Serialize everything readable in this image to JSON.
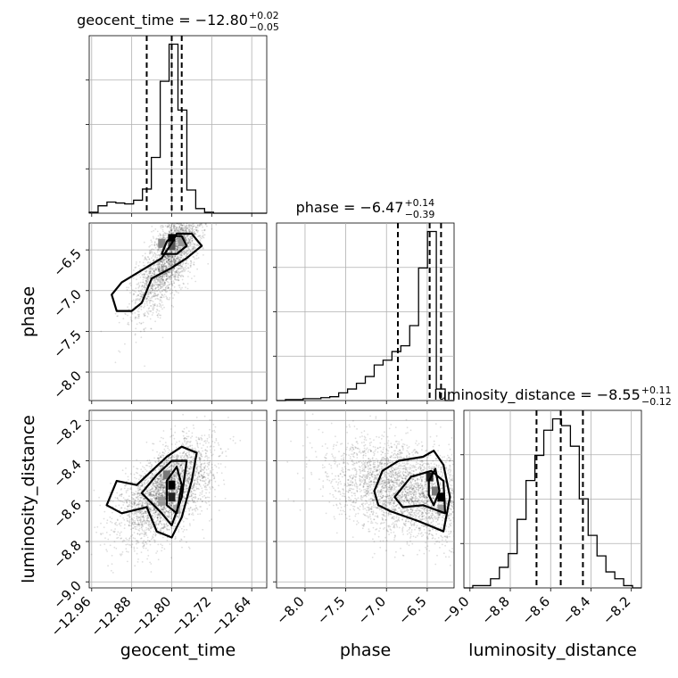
{
  "chart_data": {
    "type": "corner",
    "parameters": [
      "geocent_time",
      "phase",
      "luminosity_distance"
    ],
    "axis_labels": {
      "x": [
        "geocent_time",
        "phase",
        "luminosity_distance"
      ],
      "y": [
        "phase",
        "luminosity_distance"
      ]
    },
    "titles": [
      {
        "parameter": "geocent_time",
        "text": "geocent_time = −12.80",
        "plus": "+0.02",
        "minus": "−0.05"
      },
      {
        "parameter": "phase",
        "text": "phase = −6.47",
        "plus": "+0.14",
        "minus": "−0.39"
      },
      {
        "parameter": "luminosity_distance",
        "text": "luminosity_distance = −8.55",
        "plus": "+0.11",
        "minus": "−0.12"
      }
    ],
    "ranges": {
      "geocent_time": [
        -12.965,
        -12.61
      ],
      "phase": [
        -8.35,
        -6.17
      ],
      "luminosity_distance": [
        -9.03,
        -8.15
      ]
    },
    "ticks": {
      "geocent_time": [
        -12.96,
        -12.88,
        -12.8,
        -12.72,
        -12.64
      ],
      "phase": [
        -8.0,
        -7.5,
        -7.0,
        -6.5
      ],
      "luminosity_distance": [
        -9.0,
        -8.8,
        -8.6,
        -8.4,
        -8.2
      ]
    },
    "tick_labels": {
      "geocent_time": [
        "−12.96",
        "−12.88",
        "−12.80",
        "−12.72",
        "−12.64"
      ],
      "phase": [
        "−8.0",
        "−7.5",
        "−7.0",
        "−6.5"
      ],
      "luminosity_distance": [
        "−9.0",
        "−8.8",
        "−8.6",
        "−8.4",
        "−8.2"
      ]
    },
    "quantiles": {
      "geocent_time": [
        -12.85,
        -12.8,
        -12.78
      ],
      "phase": [
        -6.86,
        -6.47,
        -6.33
      ],
      "luminosity_distance": [
        -8.67,
        -8.55,
        -8.44
      ]
    },
    "histograms": {
      "geocent_time": {
        "edges_range": [
          -12.965,
          -12.61
        ],
        "bins": 20,
        "counts": [
          1,
          8,
          12,
          11,
          10,
          14,
          26,
          60,
          142,
          182,
          111,
          25,
          5,
          1,
          0,
          0,
          0,
          0,
          0,
          0
        ]
      },
      "phase": {
        "edges_range": [
          -8.35,
          -6.17
        ],
        "bins": 20,
        "counts": [
          0,
          1,
          1,
          2,
          2,
          3,
          4,
          8,
          12,
          18,
          25,
          37,
          42,
          51,
          57,
          78,
          138,
          176,
          12,
          0
        ]
      },
      "luminosity_distance": {
        "edges_range": [
          -9.03,
          -8.15
        ],
        "bins": 20,
        "counts": [
          0,
          1,
          1,
          4,
          9,
          15,
          30,
          47,
          58,
          69,
          74,
          71,
          62,
          39,
          23,
          14,
          7,
          4,
          1,
          0
        ]
      }
    },
    "grid": true
  }
}
